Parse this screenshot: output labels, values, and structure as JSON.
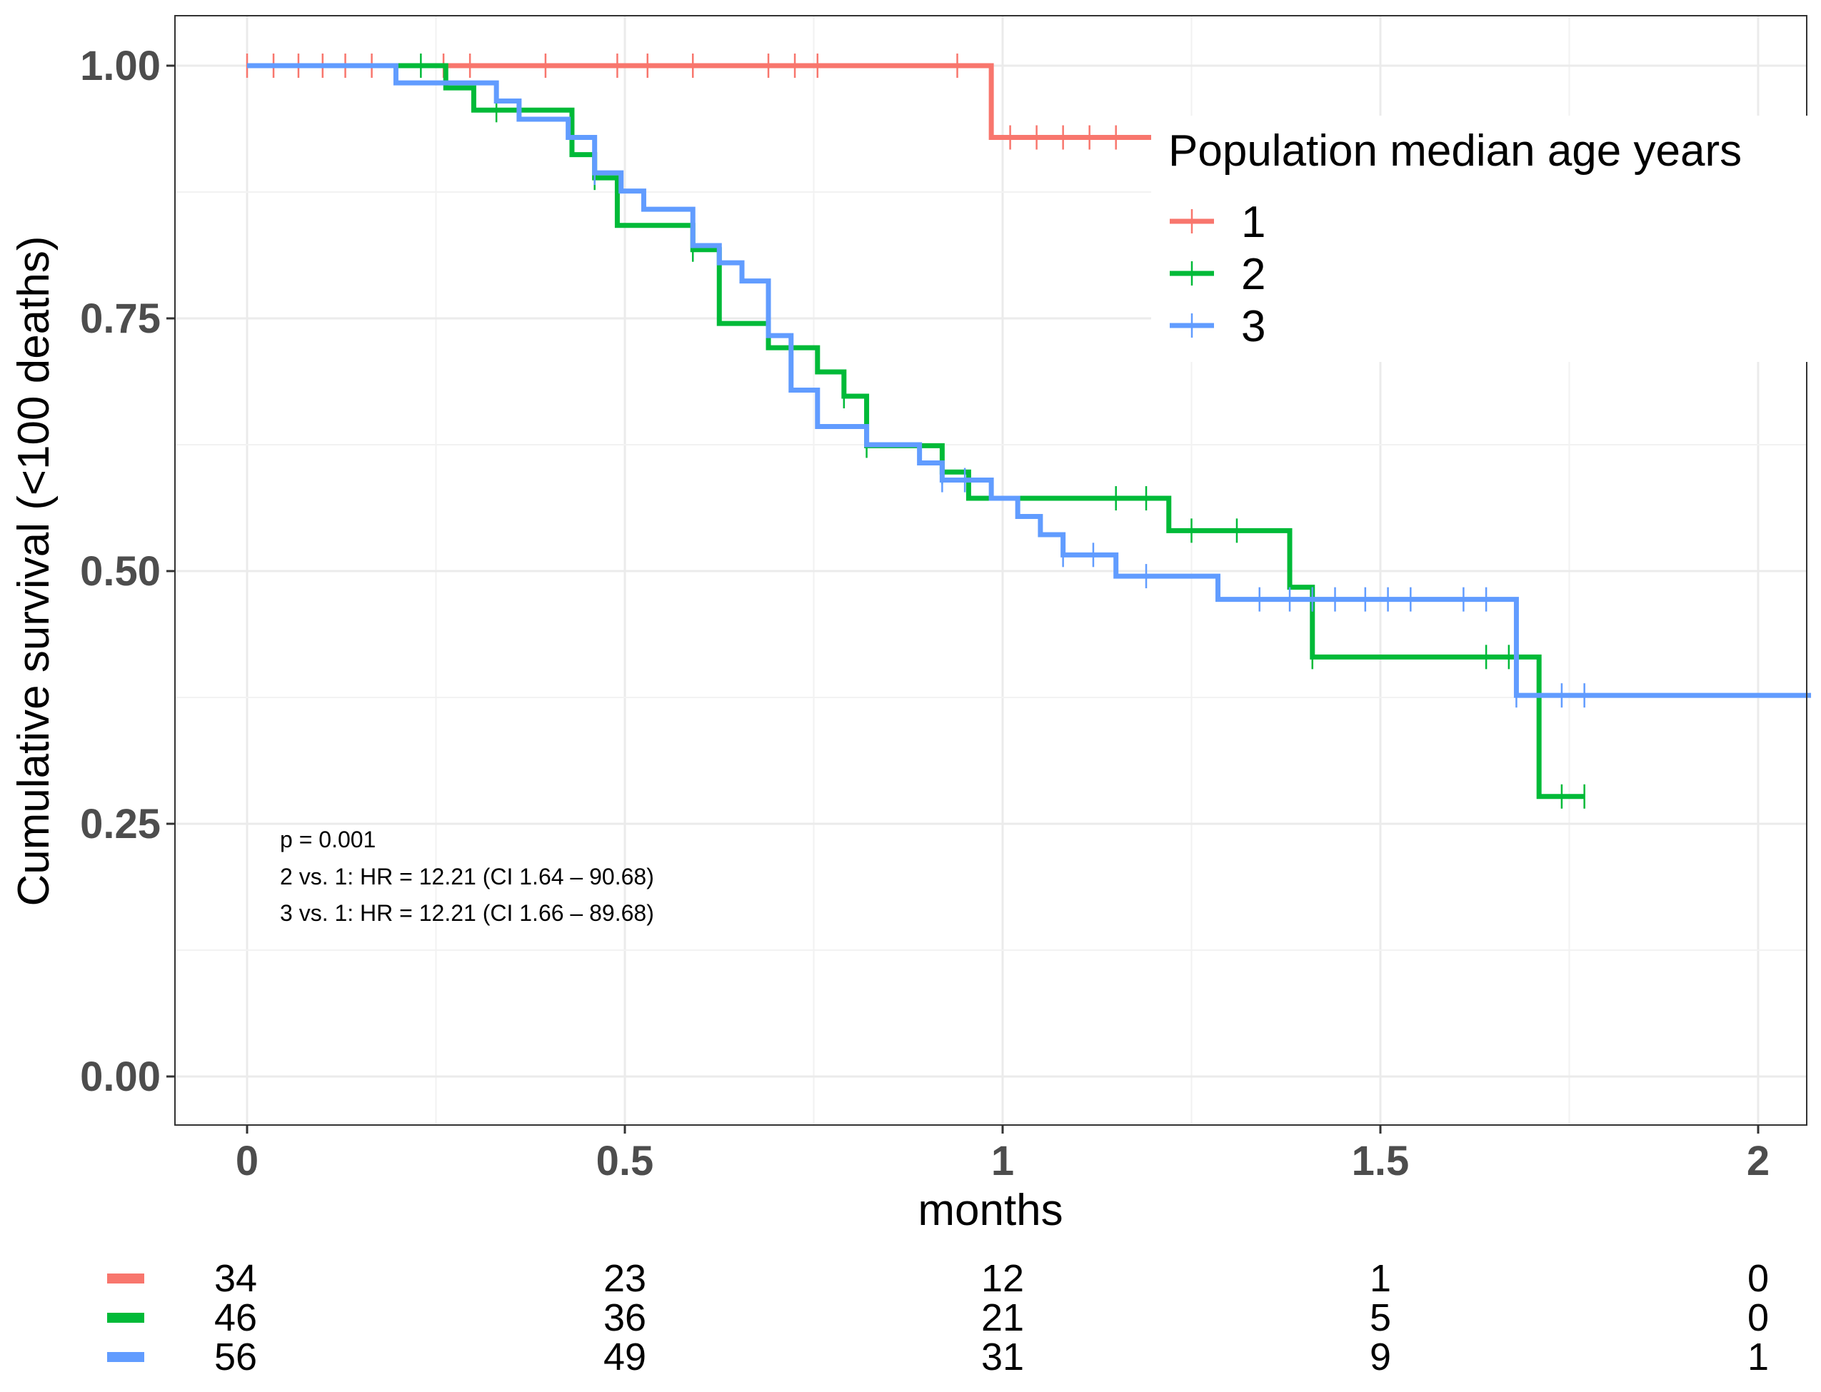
{
  "chart_data": {
    "type": "line",
    "subtype": "kaplan-meier-step",
    "title": "",
    "xlabel": "months",
    "ylabel": "Cumulative survival (<100 deaths)",
    "xlim": [
      -0.1,
      2.07
    ],
    "ylim": [
      -0.05,
      1.05
    ],
    "x_ticks": [
      0,
      0.5,
      1,
      1.5,
      2
    ],
    "x_tick_labels": [
      "0",
      "0.5",
      "1",
      "1.5",
      "2"
    ],
    "y_ticks": [
      0,
      0.25,
      0.5,
      0.75,
      1
    ],
    "y_tick_labels": [
      "0.00",
      "0.25",
      "0.50",
      "0.75",
      "1.00"
    ],
    "grid": true,
    "legend": {
      "title": "Population median age years",
      "placement": "top-right",
      "entries": [
        "1",
        "2",
        "3"
      ]
    },
    "series": [
      {
        "name": "1",
        "color": "#F8766D",
        "steps": [
          [
            0,
            1.0
          ],
          [
            0.985,
            0.929
          ],
          [
            1.2,
            0.929
          ]
        ],
        "censor_times": [
          0,
          0.035,
          0.068,
          0.1,
          0.13,
          0.165,
          0.26,
          0.295,
          0.395,
          0.49,
          0.53,
          0.59,
          0.69,
          0.725,
          0.755,
          0.94,
          1.01,
          1.045,
          1.08,
          1.115,
          1.15
        ]
      },
      {
        "name": "2",
        "color": "#00BA38",
        "steps": [
          [
            0,
            1.0
          ],
          [
            0.263,
            0.978
          ],
          [
            0.3,
            0.956
          ],
          [
            0.43,
            0.912
          ],
          [
            0.46,
            0.889
          ],
          [
            0.49,
            0.842
          ],
          [
            0.59,
            0.818
          ],
          [
            0.625,
            0.745
          ],
          [
            0.69,
            0.721
          ],
          [
            0.755,
            0.697
          ],
          [
            0.79,
            0.673
          ],
          [
            0.82,
            0.624
          ],
          [
            0.92,
            0.598
          ],
          [
            0.955,
            0.572
          ],
          [
            1.22,
            0.54
          ],
          [
            1.38,
            0.484
          ],
          [
            1.41,
            0.415
          ],
          [
            1.71,
            0.277
          ],
          [
            1.77,
            0.277
          ]
        ],
        "censor_times": [
          0.23,
          0.33,
          0.46,
          0.59,
          0.79,
          0.82,
          0.92,
          1.15,
          1.19,
          1.25,
          1.31,
          1.41,
          1.64,
          1.67,
          1.74,
          1.77
        ]
      },
      {
        "name": "3",
        "color": "#619CFF",
        "steps": [
          [
            0,
            1.0
          ],
          [
            0.197,
            0.983
          ],
          [
            0.33,
            0.965
          ],
          [
            0.36,
            0.947
          ],
          [
            0.425,
            0.929
          ],
          [
            0.46,
            0.894
          ],
          [
            0.495,
            0.876
          ],
          [
            0.525,
            0.858
          ],
          [
            0.59,
            0.822
          ],
          [
            0.625,
            0.805
          ],
          [
            0.655,
            0.787
          ],
          [
            0.69,
            0.733
          ],
          [
            0.72,
            0.679
          ],
          [
            0.755,
            0.643
          ],
          [
            0.82,
            0.625
          ],
          [
            0.89,
            0.607
          ],
          [
            0.92,
            0.59
          ],
          [
            0.985,
            0.572
          ],
          [
            1.02,
            0.554
          ],
          [
            1.05,
            0.536
          ],
          [
            1.08,
            0.516
          ],
          [
            1.15,
            0.495
          ],
          [
            1.285,
            0.472
          ],
          [
            1.68,
            0.377
          ],
          [
            2.07,
            0.377
          ]
        ],
        "censor_times": [
          0.46,
          0.92,
          0.95,
          1.08,
          1.12,
          1.19,
          1.34,
          1.38,
          1.41,
          1.44,
          1.48,
          1.51,
          1.54,
          1.61,
          1.64,
          1.68,
          1.74,
          1.77
        ]
      }
    ],
    "annotations": [
      "p = 0.001",
      "2 vs. 1: HR = 12.21 (CI 1.64 – 90.68)",
      "3 vs. 1: HR = 12.21 (CI 1.66 – 89.68)"
    ],
    "risk_table": {
      "times": [
        0,
        0.5,
        1,
        1.5,
        2
      ],
      "rows": [
        {
          "group": "1",
          "color": "#F8766D",
          "counts": [
            "34",
            "23",
            "12",
            "1",
            "0"
          ]
        },
        {
          "group": "2",
          "color": "#00BA38",
          "counts": [
            "46",
            "36",
            "21",
            "5",
            "0"
          ]
        },
        {
          "group": "3",
          "color": "#619CFF",
          "counts": [
            "56",
            "49",
            "31",
            "9",
            "1"
          ]
        }
      ]
    }
  }
}
